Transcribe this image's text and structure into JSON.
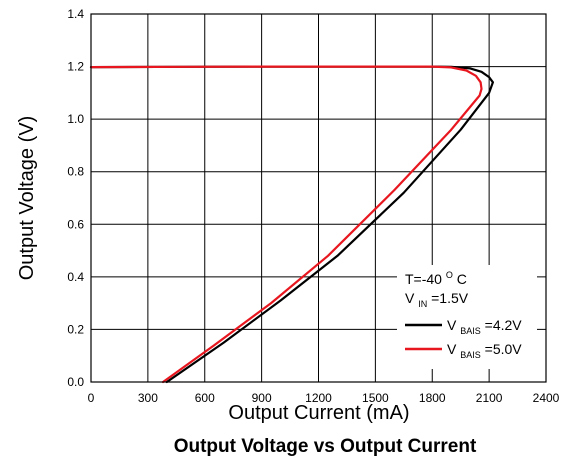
{
  "chart_data": {
    "type": "line",
    "title": "Output Voltage vs Output Current",
    "xlabel": "Output Current (mA)",
    "ylabel": "Output Voltage (V)",
    "xlim": [
      0,
      2400
    ],
    "ylim": [
      0,
      1.4
    ],
    "x_ticks": [
      "0",
      "300",
      "600",
      "900",
      "1200",
      "1500",
      "1800",
      "2100",
      "2400"
    ],
    "y_ticks": [
      "0.0",
      "0.2",
      "0.4",
      "0.6",
      "0.8",
      "1.0",
      "1.2",
      "1.4"
    ],
    "grid": true,
    "legend_position": "bottom-right",
    "annotation": {
      "temperature": {
        "prefix": "T=-40",
        "superscript": "O",
        "suffix": "C"
      },
      "vin": {
        "main": "V",
        "sub": "IN",
        "value": "=1.5V"
      }
    },
    "series": [
      {
        "name": "V_BAIS=4.2V",
        "legend": {
          "main": "V",
          "sub": "BAIS",
          "value": "=4.2V"
        },
        "color": "#000000",
        "points": [
          [
            0,
            1.198
          ],
          [
            500,
            1.199
          ],
          [
            1000,
            1.2
          ],
          [
            1500,
            1.2
          ],
          [
            1800,
            1.2
          ],
          [
            1900,
            1.199
          ],
          [
            2000,
            1.193
          ],
          [
            2060,
            1.18
          ],
          [
            2100,
            1.16
          ],
          [
            2120,
            1.14
          ],
          [
            2100,
            1.1
          ],
          [
            1950,
            0.96
          ],
          [
            1650,
            0.72
          ],
          [
            1300,
            0.48
          ],
          [
            1000,
            0.31
          ],
          [
            700,
            0.15
          ],
          [
            400,
            0.0
          ]
        ]
      },
      {
        "name": "V_BAIS=5.0V",
        "legend": {
          "main": "V",
          "sub": "BAIS",
          "value": "=5.0V"
        },
        "color": "#e8171f",
        "points": [
          [
            0,
            1.198
          ],
          [
            500,
            1.199
          ],
          [
            1000,
            1.2
          ],
          [
            1500,
            1.2
          ],
          [
            1800,
            1.2
          ],
          [
            1900,
            1.197
          ],
          [
            1980,
            1.185
          ],
          [
            2030,
            1.165
          ],
          [
            2055,
            1.14
          ],
          [
            2060,
            1.115
          ],
          [
            2050,
            1.09
          ],
          [
            1900,
            0.96
          ],
          [
            1600,
            0.73
          ],
          [
            1250,
            0.48
          ],
          [
            950,
            0.3
          ],
          [
            650,
            0.14
          ],
          [
            380,
            0.0
          ]
        ]
      }
    ]
  }
}
